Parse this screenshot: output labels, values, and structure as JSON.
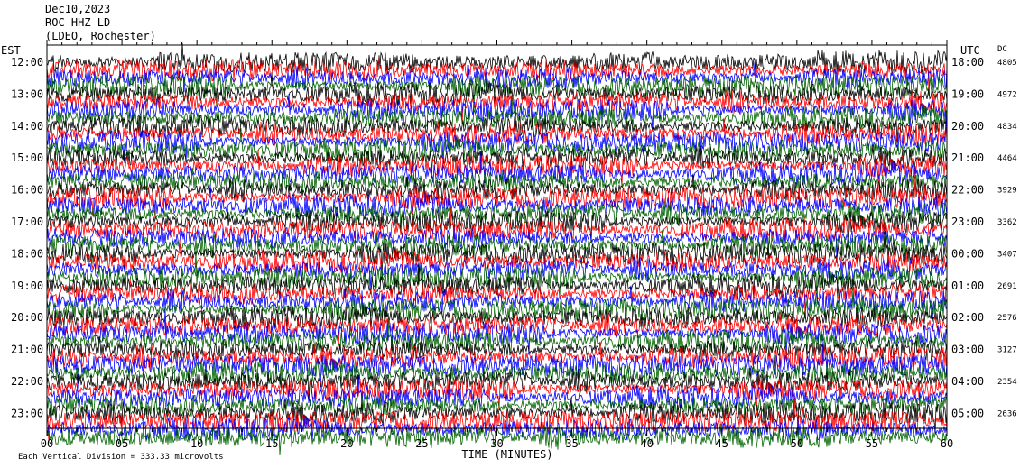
{
  "header": {
    "date": "Dec10,2023",
    "channel": "ROC HHZ LD --",
    "station": "(LDEO, Rochester)"
  },
  "chart_data": {
    "type": "line",
    "left_axis_label": "EST",
    "right_axis_label": "UTC",
    "dc_label": "DC",
    "xlabel": "TIME (MINUTES)",
    "xlim": [
      0,
      60
    ],
    "x_ticks": [
      "00",
      "05",
      "10",
      "15",
      "20",
      "25",
      "30",
      "35",
      "40",
      "45",
      "50",
      "55",
      "60"
    ],
    "footer_note": "Each Vertical Division = 333.33 microvolts",
    "trace_colors": [
      "#000000",
      "#ff0000",
      "#0000ff",
      "#006400"
    ],
    "rows": [
      {
        "est": "12:00",
        "utc": "18:00",
        "dc": "4805"
      },
      {
        "est": "13:00",
        "utc": "19:00",
        "dc": "4972"
      },
      {
        "est": "14:00",
        "utc": "20:00",
        "dc": "4834"
      },
      {
        "est": "15:00",
        "utc": "21:00",
        "dc": "4464"
      },
      {
        "est": "16:00",
        "utc": "22:00",
        "dc": "3929"
      },
      {
        "est": "17:00",
        "utc": "23:00",
        "dc": "3362"
      },
      {
        "est": "18:00",
        "utc": "00:00",
        "dc": "3407"
      },
      {
        "est": "19:00",
        "utc": "01:00",
        "dc": "2691"
      },
      {
        "est": "20:00",
        "utc": "02:00",
        "dc": "2576"
      },
      {
        "est": "21:00",
        "utc": "03:00",
        "dc": "3127"
      },
      {
        "est": "22:00",
        "utc": "04:00",
        "dc": "2354"
      },
      {
        "est": "23:00",
        "utc": "05:00",
        "dc": "2636"
      }
    ]
  }
}
